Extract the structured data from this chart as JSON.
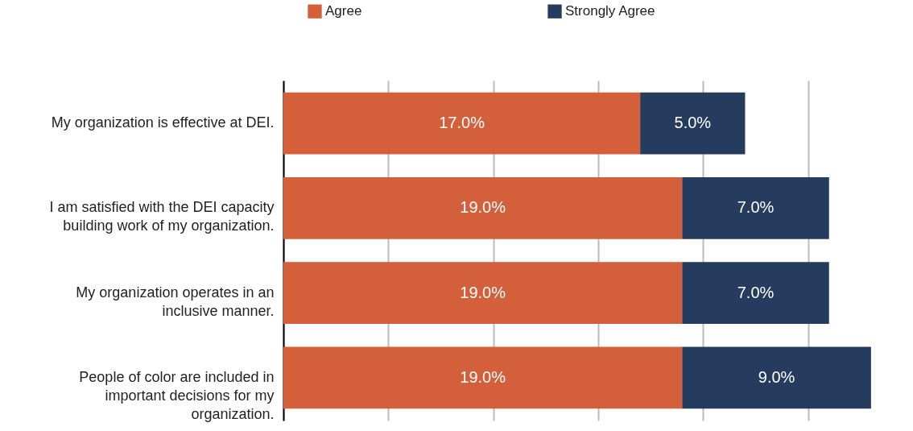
{
  "chart_data": {
    "type": "bar",
    "orientation": "horizontal",
    "stacked": true,
    "categories": [
      "My organization is effective at DEI.",
      "I am satisfied with the DEI capacity building work of my organization.",
      "My organization operates in an inclusive manner.",
      "People of color are included in important decisions for my organization."
    ],
    "series": [
      {
        "name": "Agree",
        "color": "#d45f3b",
        "values": [
          17,
          19,
          19,
          19
        ],
        "value_labels": [
          "17.0%",
          "19.0%",
          "19.0%",
          "19.0%"
        ]
      },
      {
        "name": "Strongly Agree",
        "color": "#263c5e",
        "values": [
          5,
          7,
          7,
          9
        ],
        "value_labels": [
          "5.0%",
          "7.0%",
          "7.0%",
          "9.0%"
        ]
      }
    ],
    "xlim": [
      0,
      30
    ],
    "xticks": [
      {
        "value": 0,
        "label": null
      },
      {
        "value": 5,
        "label": null
      },
      {
        "value": 10,
        "label": null
      },
      {
        "value": 15,
        "label": null
      },
      {
        "value": 20,
        "label": null
      },
      {
        "value": 25,
        "label": null
      }
    ],
    "grid": "x",
    "tick_labels": "y",
    "legend": "top"
  }
}
